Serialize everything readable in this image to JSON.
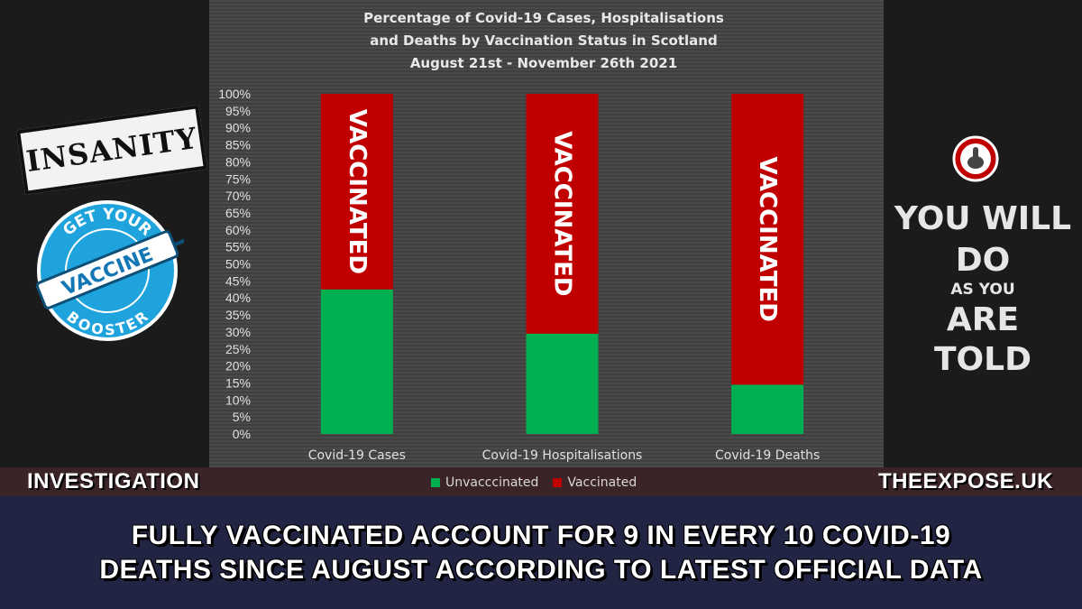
{
  "chart_data": {
    "type": "bar",
    "stacked": true,
    "title": [
      "Percentage of Covid-19 Cases, Hospitalisations",
      "and Deaths by Vaccination Status in Scotland",
      "August 21st - November 26th 2021"
    ],
    "categories": [
      "Covid-19 Cases",
      "Covid-19 Hospitalisations",
      "Covid-19 Deaths"
    ],
    "series": [
      {
        "name": "Unvacccinated",
        "color": "#00b050",
        "values": [
          42.5,
          29.5,
          14.5
        ]
      },
      {
        "name": "Vaccinated",
        "color": "#c00000",
        "values": [
          57.5,
          70.5,
          85.5
        ]
      }
    ],
    "bar_label": "VACCINATED",
    "ylim": [
      0,
      100
    ],
    "yticks": [
      0,
      5,
      10,
      15,
      20,
      25,
      30,
      35,
      40,
      45,
      50,
      55,
      60,
      65,
      70,
      75,
      80,
      85,
      90,
      95,
      100
    ],
    "ytick_suffix": "%",
    "legend_position": "bottom",
    "grid": false
  },
  "tags": {
    "left": "INVESTIGATION",
    "right": "THEEXPOSE.UK"
  },
  "headline": [
    "FULLY VACCINATED ACCOUNT FOR 9 IN EVERY 10 COVID-19",
    "DEATHS SINCE AUGUST ACCORDING TO LATEST OFFICIAL DATA"
  ],
  "stamp": "INSANITY",
  "badge": {
    "top": "GET YOUR",
    "middle": "VACCINE",
    "bottom": "BOOSTER"
  },
  "slogan": [
    "YOU WILL",
    "DO",
    "AS YOU",
    "ARE",
    "TOLD"
  ],
  "icons": {
    "badge_icon": "syringe-icon",
    "pointer_icon": "pointing-finger-icon"
  }
}
